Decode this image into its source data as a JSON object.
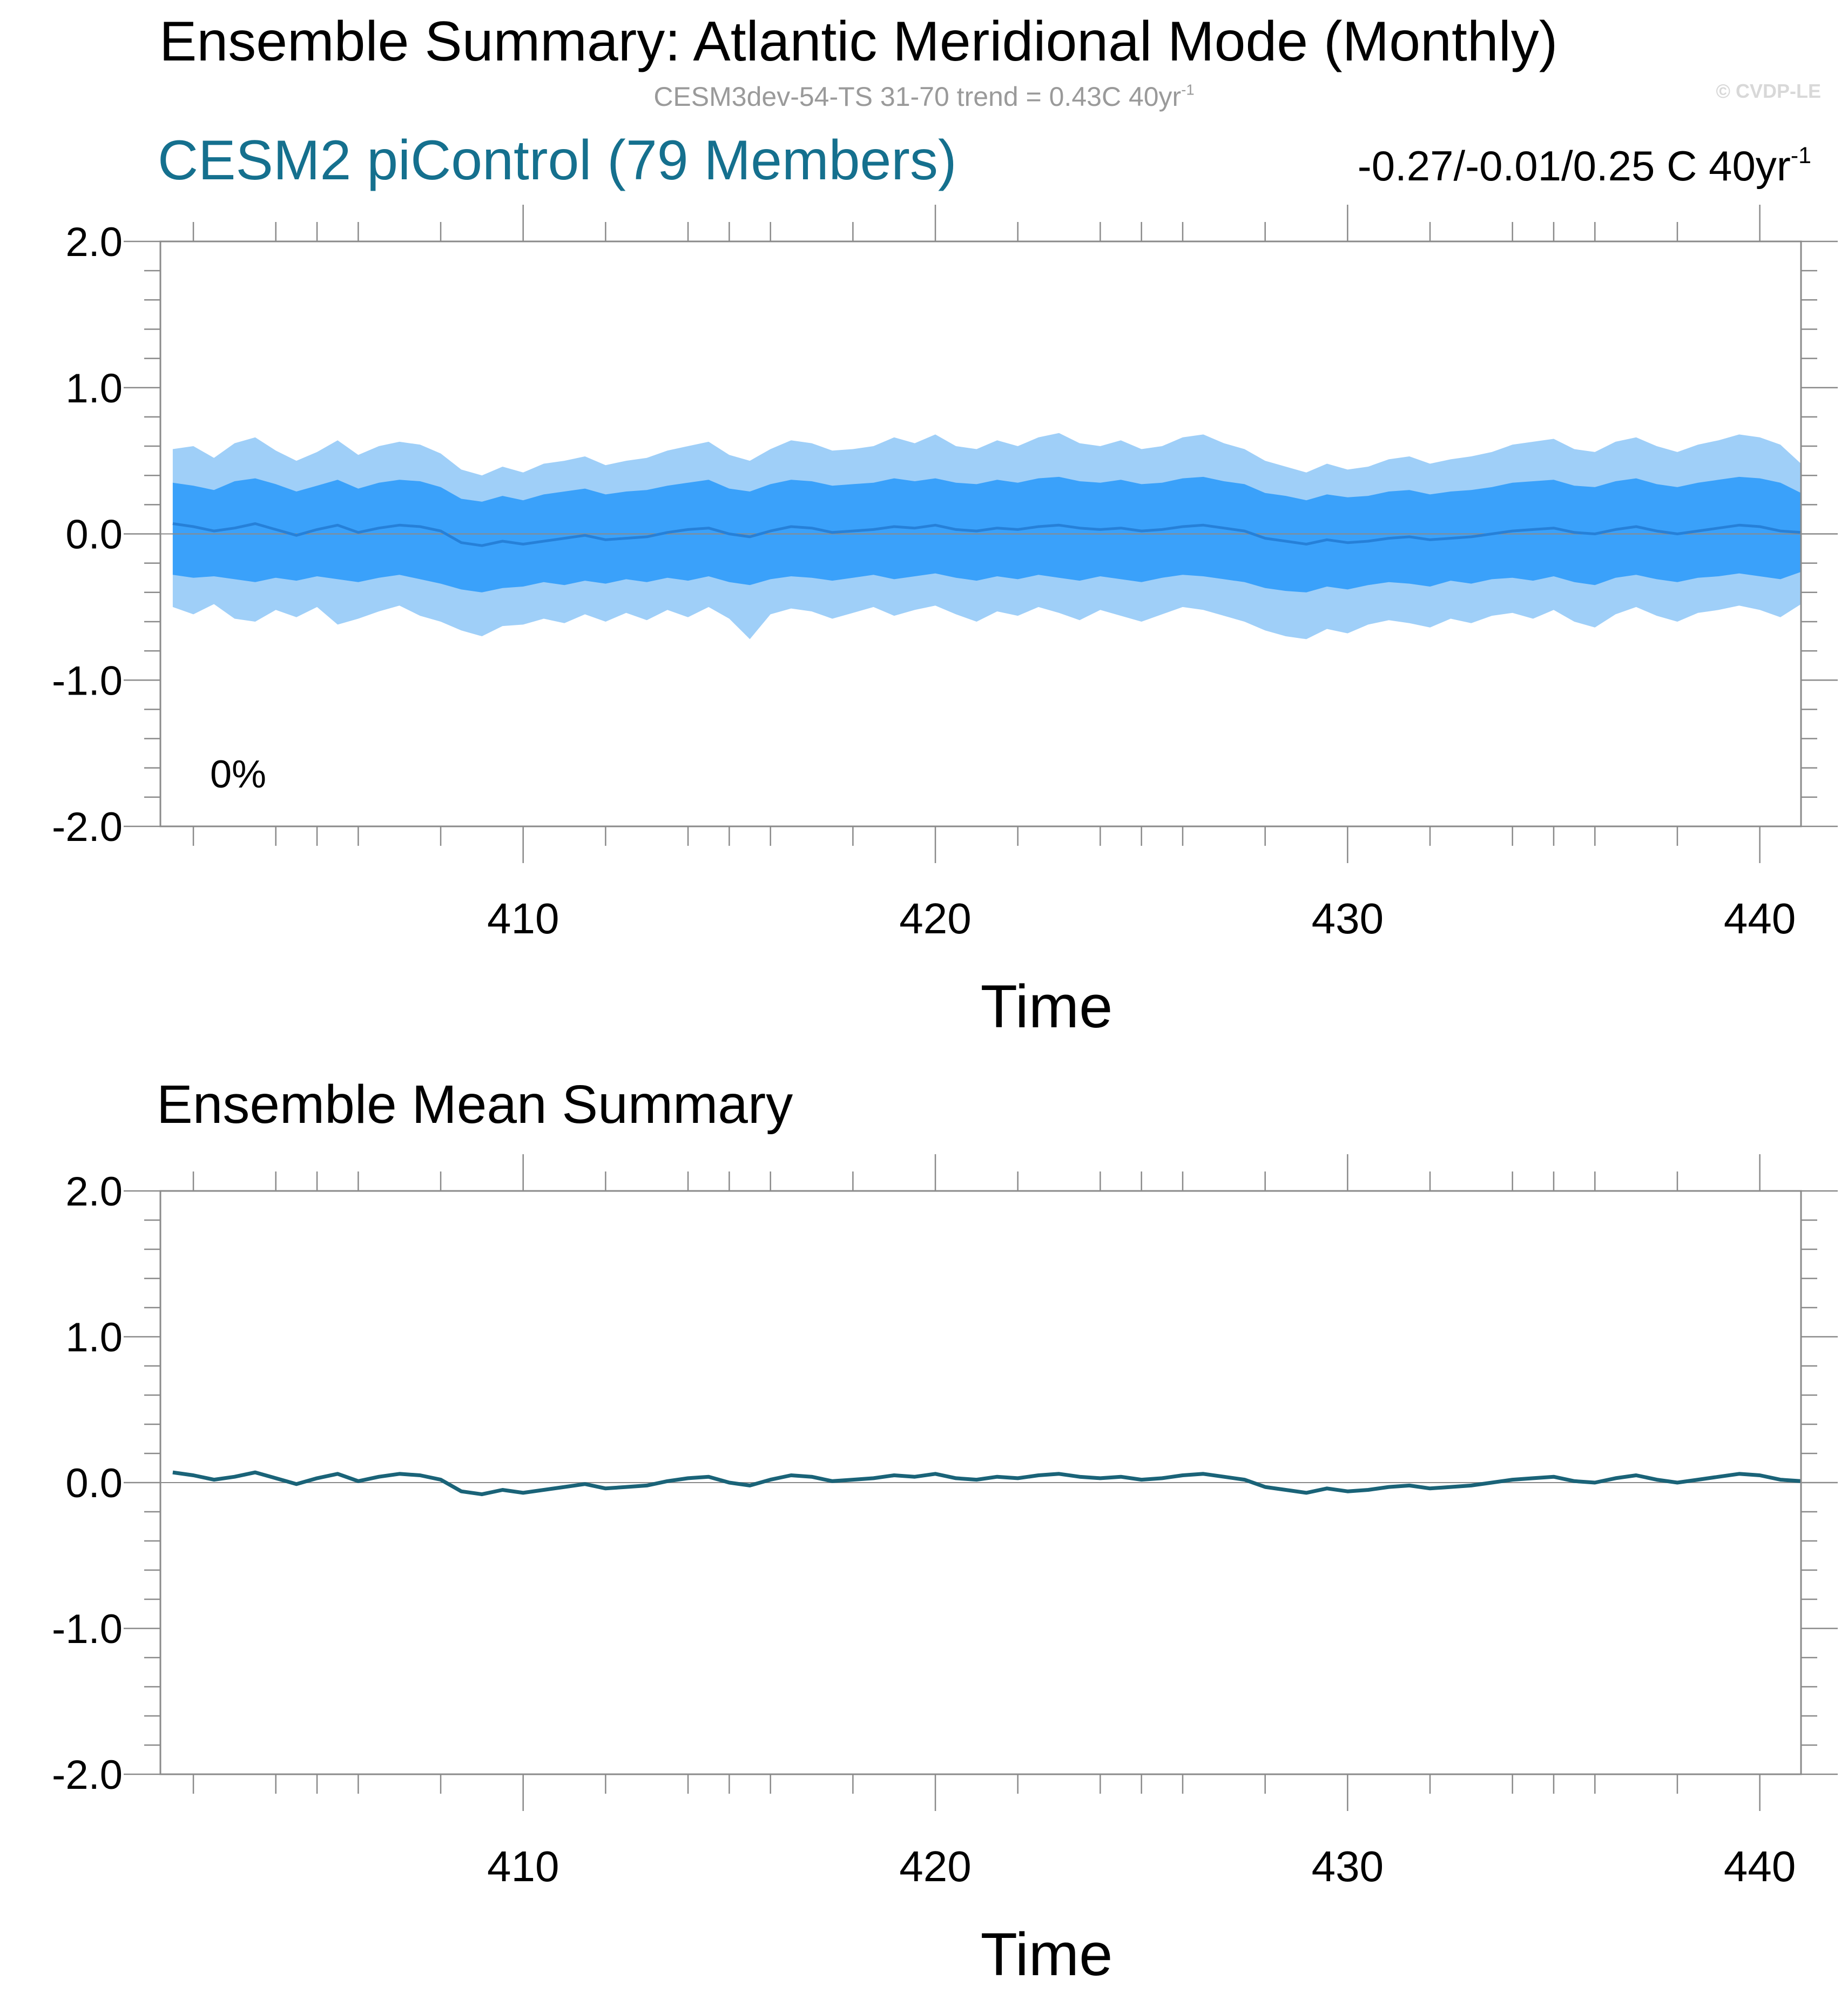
{
  "page": {
    "title": "Ensemble Summary: Atlantic Meridional Mode (Monthly)",
    "subtitle": "CESM3dev-54-TS 31-70 trend = 0.43C 40yr",
    "subtitle_sup": "-1",
    "credit": "© CVDP-LE"
  },
  "colors": {
    "title_accent": "#15708e",
    "outer_band": "#9fcff8",
    "inner_band": "#3aa1fa",
    "mean_line_top": "#2680d8",
    "mean_line_bottom": "#1a6378",
    "subtitle_gray": "#9a9a9a",
    "credit_gray": "#d8d8d8"
  },
  "chart_data": [
    {
      "type": "area",
      "title": "CESM2 piControl (79 Members)",
      "trend_range": "-0.27/-0.01/0.25 C 40yr",
      "trend_sup": "-1",
      "annotation": "0%",
      "xlabel": "Time",
      "ylabel": "",
      "xlim": [
        401.2,
        441.0
      ],
      "ylim": [
        -2.0,
        2.0
      ],
      "x_ticks": [
        410,
        420,
        430,
        440
      ],
      "y_ticks": [
        2.0,
        1.0,
        0.0,
        -1.0,
        -2.0
      ],
      "series": [
        {
          "name": "ensemble-mean",
          "x": [
            401.5,
            402,
            402.5,
            403,
            403.5,
            404,
            404.5,
            405,
            405.5,
            406,
            406.5,
            407,
            407.5,
            408,
            408.5,
            409,
            409.5,
            410,
            410.5,
            411,
            411.5,
            412,
            412.5,
            413,
            413.5,
            414,
            414.5,
            415,
            415.5,
            416,
            416.5,
            417,
            417.5,
            418,
            418.5,
            419,
            419.5,
            420,
            420.5,
            421,
            421.5,
            422,
            422.5,
            423,
            423.5,
            424,
            424.5,
            425,
            425.5,
            426,
            426.5,
            427,
            427.5,
            428,
            428.5,
            429,
            429.5,
            430,
            430.5,
            431,
            431.5,
            432,
            432.5,
            433,
            433.5,
            434,
            434.5,
            435,
            435.5,
            436,
            436.5,
            437,
            437.5,
            438,
            438.5,
            439,
            439.5,
            440,
            440.5,
            441
          ],
          "values": [
            0.07,
            0.05,
            0.02,
            0.04,
            0.07,
            0.03,
            -0.01,
            0.03,
            0.06,
            0.01,
            0.04,
            0.06,
            0.05,
            0.02,
            -0.06,
            -0.08,
            -0.05,
            -0.07,
            -0.05,
            -0.03,
            -0.01,
            -0.04,
            -0.03,
            -0.02,
            0.01,
            0.03,
            0.04,
            0.0,
            -0.02,
            0.02,
            0.05,
            0.04,
            0.01,
            0.02,
            0.03,
            0.05,
            0.04,
            0.06,
            0.03,
            0.02,
            0.04,
            0.03,
            0.05,
            0.06,
            0.04,
            0.03,
            0.04,
            0.02,
            0.03,
            0.05,
            0.06,
            0.04,
            0.02,
            -0.03,
            -0.05,
            -0.07,
            -0.04,
            -0.06,
            -0.05,
            -0.03,
            -0.02,
            -0.04,
            -0.03,
            -0.02,
            0.0,
            0.02,
            0.03,
            0.04,
            0.01,
            0.0,
            0.03,
            0.05,
            0.02,
            0.0,
            0.02,
            0.04,
            0.06,
            0.05,
            0.02,
            0.01
          ]
        },
        {
          "name": "10th-90th-percentile",
          "lower": [
            -0.28,
            -0.3,
            -0.29,
            -0.31,
            -0.33,
            -0.3,
            -0.32,
            -0.29,
            -0.31,
            -0.33,
            -0.3,
            -0.28,
            -0.31,
            -0.34,
            -0.38,
            -0.4,
            -0.37,
            -0.36,
            -0.33,
            -0.35,
            -0.32,
            -0.34,
            -0.31,
            -0.33,
            -0.3,
            -0.32,
            -0.29,
            -0.33,
            -0.35,
            -0.31,
            -0.29,
            -0.3,
            -0.32,
            -0.3,
            -0.28,
            -0.31,
            -0.29,
            -0.27,
            -0.3,
            -0.32,
            -0.29,
            -0.31,
            -0.28,
            -0.3,
            -0.32,
            -0.29,
            -0.31,
            -0.33,
            -0.3,
            -0.28,
            -0.29,
            -0.31,
            -0.33,
            -0.37,
            -0.39,
            -0.4,
            -0.36,
            -0.38,
            -0.35,
            -0.33,
            -0.34,
            -0.36,
            -0.32,
            -0.34,
            -0.31,
            -0.3,
            -0.32,
            -0.29,
            -0.33,
            -0.35,
            -0.3,
            -0.28,
            -0.31,
            -0.33,
            -0.3,
            -0.29,
            -0.27,
            -0.29,
            -0.31,
            -0.26
          ],
          "upper": [
            0.35,
            0.33,
            0.3,
            0.36,
            0.38,
            0.34,
            0.29,
            0.33,
            0.37,
            0.31,
            0.35,
            0.37,
            0.36,
            0.32,
            0.24,
            0.22,
            0.26,
            0.23,
            0.27,
            0.29,
            0.31,
            0.27,
            0.29,
            0.3,
            0.33,
            0.35,
            0.37,
            0.31,
            0.29,
            0.34,
            0.37,
            0.36,
            0.33,
            0.34,
            0.35,
            0.38,
            0.36,
            0.38,
            0.35,
            0.34,
            0.37,
            0.35,
            0.38,
            0.39,
            0.36,
            0.35,
            0.37,
            0.34,
            0.35,
            0.38,
            0.39,
            0.36,
            0.34,
            0.28,
            0.26,
            0.23,
            0.27,
            0.25,
            0.26,
            0.29,
            0.3,
            0.27,
            0.29,
            0.3,
            0.32,
            0.35,
            0.36,
            0.37,
            0.33,
            0.32,
            0.36,
            0.38,
            0.34,
            0.32,
            0.35,
            0.37,
            0.39,
            0.38,
            0.35,
            0.28
          ]
        },
        {
          "name": "min-max",
          "lower": [
            -0.5,
            -0.55,
            -0.48,
            -0.58,
            -0.6,
            -0.52,
            -0.57,
            -0.5,
            -0.62,
            -0.58,
            -0.53,
            -0.49,
            -0.56,
            -0.6,
            -0.66,
            -0.7,
            -0.63,
            -0.62,
            -0.58,
            -0.61,
            -0.55,
            -0.6,
            -0.54,
            -0.59,
            -0.52,
            -0.57,
            -0.5,
            -0.58,
            -0.72,
            -0.55,
            -0.51,
            -0.53,
            -0.58,
            -0.54,
            -0.5,
            -0.56,
            -0.52,
            -0.49,
            -0.55,
            -0.6,
            -0.53,
            -0.56,
            -0.5,
            -0.54,
            -0.59,
            -0.52,
            -0.56,
            -0.6,
            -0.55,
            -0.5,
            -0.52,
            -0.56,
            -0.6,
            -0.66,
            -0.7,
            -0.72,
            -0.65,
            -0.68,
            -0.62,
            -0.59,
            -0.61,
            -0.64,
            -0.58,
            -0.61,
            -0.56,
            -0.54,
            -0.58,
            -0.52,
            -0.6,
            -0.64,
            -0.55,
            -0.5,
            -0.56,
            -0.6,
            -0.54,
            -0.52,
            -0.49,
            -0.52,
            -0.57,
            -0.48
          ],
          "upper": [
            0.58,
            0.6,
            0.52,
            0.62,
            0.66,
            0.57,
            0.5,
            0.56,
            0.64,
            0.54,
            0.6,
            0.63,
            0.61,
            0.55,
            0.44,
            0.4,
            0.46,
            0.42,
            0.48,
            0.5,
            0.53,
            0.47,
            0.5,
            0.52,
            0.57,
            0.6,
            0.63,
            0.54,
            0.5,
            0.58,
            0.64,
            0.62,
            0.57,
            0.58,
            0.6,
            0.66,
            0.62,
            0.68,
            0.6,
            0.58,
            0.64,
            0.6,
            0.66,
            0.69,
            0.62,
            0.6,
            0.64,
            0.58,
            0.6,
            0.66,
            0.68,
            0.62,
            0.58,
            0.5,
            0.46,
            0.42,
            0.48,
            0.44,
            0.46,
            0.51,
            0.53,
            0.48,
            0.51,
            0.53,
            0.56,
            0.61,
            0.63,
            0.65,
            0.58,
            0.56,
            0.63,
            0.66,
            0.6,
            0.56,
            0.61,
            0.64,
            0.68,
            0.66,
            0.61,
            0.48
          ]
        }
      ]
    },
    {
      "type": "line",
      "title": "Ensemble Mean Summary",
      "xlabel": "Time",
      "ylabel": "",
      "xlim": [
        401.2,
        441.0
      ],
      "ylim": [
        -2.0,
        2.0
      ],
      "x_ticks": [
        410,
        420,
        430,
        440
      ],
      "y_ticks": [
        2.0,
        1.0,
        0.0,
        -1.0,
        -2.0
      ],
      "series": [
        {
          "name": "ensemble-mean",
          "x": [
            401.5,
            402,
            402.5,
            403,
            403.5,
            404,
            404.5,
            405,
            405.5,
            406,
            406.5,
            407,
            407.5,
            408,
            408.5,
            409,
            409.5,
            410,
            410.5,
            411,
            411.5,
            412,
            412.5,
            413,
            413.5,
            414,
            414.5,
            415,
            415.5,
            416,
            416.5,
            417,
            417.5,
            418,
            418.5,
            419,
            419.5,
            420,
            420.5,
            421,
            421.5,
            422,
            422.5,
            423,
            423.5,
            424,
            424.5,
            425,
            425.5,
            426,
            426.5,
            427,
            427.5,
            428,
            428.5,
            429,
            429.5,
            430,
            430.5,
            431,
            431.5,
            432,
            432.5,
            433,
            433.5,
            434,
            434.5,
            435,
            435.5,
            436,
            436.5,
            437,
            437.5,
            438,
            438.5,
            439,
            439.5,
            440,
            440.5,
            441
          ],
          "values": [
            0.07,
            0.05,
            0.02,
            0.04,
            0.07,
            0.03,
            -0.01,
            0.03,
            0.06,
            0.01,
            0.04,
            0.06,
            0.05,
            0.02,
            -0.06,
            -0.08,
            -0.05,
            -0.07,
            -0.05,
            -0.03,
            -0.01,
            -0.04,
            -0.03,
            -0.02,
            0.01,
            0.03,
            0.04,
            0.0,
            -0.02,
            0.02,
            0.05,
            0.04,
            0.01,
            0.02,
            0.03,
            0.05,
            0.04,
            0.06,
            0.03,
            0.02,
            0.04,
            0.03,
            0.05,
            0.06,
            0.04,
            0.03,
            0.04,
            0.02,
            0.03,
            0.05,
            0.06,
            0.04,
            0.02,
            -0.03,
            -0.05,
            -0.07,
            -0.04,
            -0.06,
            -0.05,
            -0.03,
            -0.02,
            -0.04,
            -0.03,
            -0.02,
            0.0,
            0.02,
            0.03,
            0.04,
            0.01,
            0.0,
            0.03,
            0.05,
            0.02,
            0.0,
            0.02,
            0.04,
            0.06,
            0.05,
            0.02,
            0.01
          ]
        }
      ]
    }
  ]
}
